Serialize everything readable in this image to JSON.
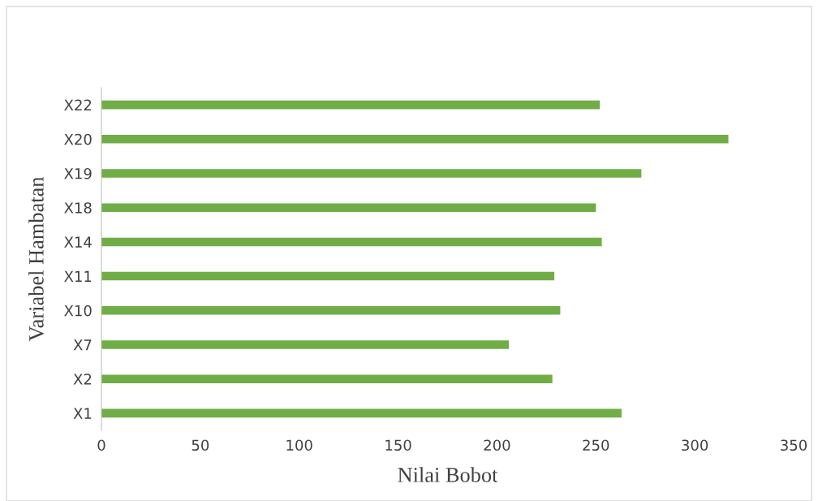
{
  "chart_data": {
    "type": "bar",
    "orientation": "horizontal",
    "xlabel": "Nilai Bobot",
    "ylabel": "Variabel Hambatan",
    "categories": [
      "X22",
      "X20",
      "X19",
      "X18",
      "X14",
      "X11",
      "X10",
      "X7",
      "X2",
      "X1"
    ],
    "values": [
      252,
      317,
      273,
      250,
      253,
      229,
      232,
      206,
      228,
      263
    ],
    "color": "#70ad47",
    "xlim": [
      0,
      350
    ],
    "xticks": [
      0,
      50,
      100,
      150,
      200,
      250,
      300,
      350
    ],
    "grid": false,
    "legend": false
  }
}
